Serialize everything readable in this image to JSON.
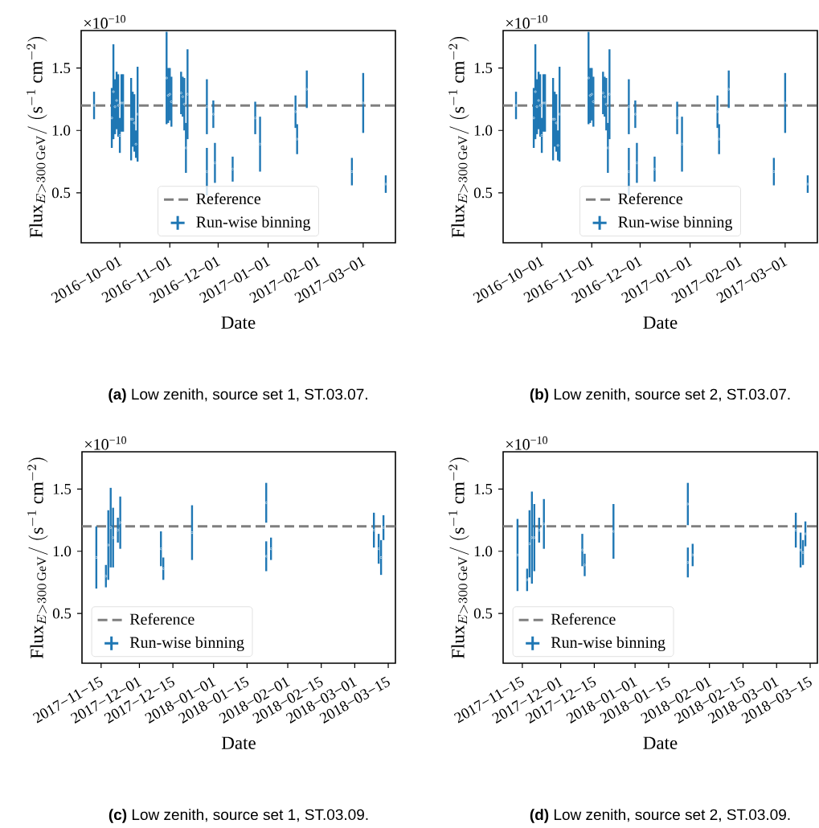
{
  "chart_data": [
    {
      "type": "scatter",
      "xlabel": "Date",
      "ylabel": "\\mathrm{Flux}_{E>300\\,\\mathrm{GeV}}/\\ (\\mathrm{s}^{-1}\\ \\mathrm{cm}^{-2})",
      "marker": "circle",
      "legend": "bottom",
      "grid": false,
      "x": [
        "2016-09-15",
        "2016-09-26",
        "2016-09-27",
        "2016-09-28",
        "2016-09-29",
        "2016-09-30",
        "2016-10-01",
        "2016-10-02",
        "2016-10-03",
        "2016-10-08",
        "2016-10-09",
        "2016-10-10",
        "2016-10-11",
        "2016-10-12",
        "2016-10-30",
        "2016-10-31",
        "2016-11-01",
        "2016-11-02",
        "2016-11-08",
        "2016-11-09",
        "2016-11-10",
        "2016-11-12",
        "2016-11-11",
        "2016-11-24",
        "2016-11-24",
        "2016-11-28",
        "2016-11-29",
        "2016-12-10",
        "2016-12-24",
        "2016-12-27",
        "2017-01-17",
        "2017-01-18",
        "2017-01-19",
        "2017-01-25",
        "2017-02-22",
        "2017-03-01",
        "2017-03-15"
      ],
      "series": [
        {
          "name": "Run-wise binning",
          "color": "#1f77b4",
          "values": [
            1.2,
            1.1,
            1.31,
            1.19,
            1.24,
            1.2,
            0.96,
            1.22,
            1.22,
            1.09,
            1.09,
            1.06,
            0.89,
            1.13,
            1.42,
            1.28,
            1.29,
            1.23,
            1.3,
            1.27,
            1.21,
            1.29,
            0.86,
            1.19,
            0.67,
            1.13,
            0.74,
            0.69,
            1.1,
            0.89,
            null,
            1.15,
            0.93,
            1.33,
            0.67,
            1.22,
            0.57
          ],
          "errors": [
            0.11,
            0.24,
            0.38,
            0.22,
            0.23,
            0.25,
            0.14,
            0.23,
            0.23,
            0.33,
            0.22,
            0.23,
            0.11,
            0.38,
            0.37,
            0.22,
            0.21,
            0.2,
            0.17,
            0.16,
            0.21,
            0.36,
            0.2,
            0.22,
            0.19,
            0.11,
            0.16,
            0.1,
            0.13,
            0.22,
            null,
            0.13,
            0.12,
            0.15,
            0.11,
            0.24,
            0.07
          ]
        }
      ],
      "xlim": [
        "2016-09-07",
        "2017-03-21"
      ],
      "ylim": [
        0.1,
        1.8
      ],
      "xticks": [
        {
          "value": "2016-10-01",
          "label": "2016−10−01"
        },
        {
          "value": "2016-11-01",
          "label": "2016−11−01"
        },
        {
          "value": "2016-12-01",
          "label": "2016−12−01"
        },
        {
          "value": "2017-01-01",
          "label": "2017−01−01"
        },
        {
          "value": "2017-02-01",
          "label": "2017−02−01"
        },
        {
          "value": "2017-03-01",
          "label": "2017−03−01"
        }
      ],
      "yticks": [
        {
          "value": 0.5,
          "label": "0.5"
        },
        {
          "value": 1.0,
          "label": "1.0"
        },
        {
          "value": 1.5,
          "label": "1.5"
        }
      ],
      "ref_lines": [
        {
          "axis": "y",
          "value": 1.2,
          "label": "Reference",
          "color": "#7f7f7f",
          "line_style": "dashed"
        }
      ],
      "annotations": [
        "×10$^{−10}$",
        "**(a)** Low zenith, source set 1, ST.03.07."
      ]
    },
    {
      "type": "scatter",
      "xlabel": "Date",
      "ylabel": "\\mathrm{Flux}_{E>300\\,\\mathrm{GeV}}/\\ (\\mathrm{s}^{-1}\\ \\mathrm{cm}^{-2})",
      "marker": "circle",
      "legend": "bottom",
      "grid": false,
      "x": [
        "2016-09-15",
        "2016-09-26",
        "2016-09-27",
        "2016-09-28",
        "2016-09-29",
        "2016-09-30",
        "2016-10-01",
        "2016-10-02",
        "2016-10-03",
        "2016-10-08",
        "2016-10-09",
        "2016-10-10",
        "2016-10-11",
        "2016-10-12",
        "2016-10-30",
        "2016-10-31",
        "2016-11-01",
        "2016-11-02",
        "2016-11-08",
        "2016-11-09",
        "2016-11-10",
        "2016-11-12",
        "2016-11-11",
        "2016-11-24",
        "2016-11-24",
        "2016-11-28",
        "2016-11-29",
        "2016-12-10",
        "2016-12-24",
        "2016-12-27",
        "2017-01-17",
        "2017-01-18",
        "2017-01-19",
        "2017-01-25",
        "2017-02-22",
        "2017-03-01",
        "2017-03-15"
      ],
      "series": [
        {
          "name": "Run-wise binning",
          "color": "#1f77b4",
          "values": [
            1.2,
            1.1,
            1.31,
            1.19,
            1.24,
            1.2,
            0.96,
            1.22,
            1.22,
            1.09,
            1.09,
            1.06,
            0.88,
            1.13,
            1.42,
            1.28,
            1.29,
            1.23,
            1.3,
            1.27,
            1.21,
            1.29,
            0.86,
            1.19,
            0.67,
            1.13,
            0.74,
            0.69,
            1.1,
            0.89,
            null,
            1.15,
            0.93,
            1.33,
            0.67,
            1.22,
            0.57
          ],
          "errors": [
            0.11,
            0.24,
            0.38,
            0.22,
            0.23,
            0.25,
            0.14,
            0.23,
            0.23,
            0.33,
            0.22,
            0.23,
            0.12,
            0.38,
            0.37,
            0.22,
            0.21,
            0.2,
            0.17,
            0.16,
            0.21,
            0.36,
            0.2,
            0.22,
            0.19,
            0.11,
            0.16,
            0.1,
            0.13,
            0.22,
            null,
            0.13,
            0.12,
            0.15,
            0.11,
            0.24,
            0.07
          ]
        }
      ],
      "xlim": [
        "2016-09-07",
        "2017-03-21"
      ],
      "ylim": [
        0.1,
        1.8
      ],
      "xticks": [
        {
          "value": "2016-10-01",
          "label": "2016−10−01"
        },
        {
          "value": "2016-11-01",
          "label": "2016−11−01"
        },
        {
          "value": "2016-12-01",
          "label": "2016−12−01"
        },
        {
          "value": "2017-01-01",
          "label": "2017−01−01"
        },
        {
          "value": "2017-02-01",
          "label": "2017−02−01"
        },
        {
          "value": "2017-03-01",
          "label": "2017−03−01"
        }
      ],
      "yticks": [
        {
          "value": 0.5,
          "label": "0.5"
        },
        {
          "value": 1.0,
          "label": "1.0"
        },
        {
          "value": 1.5,
          "label": "1.5"
        }
      ],
      "ref_lines": [
        {
          "axis": "y",
          "value": 1.2,
          "label": "Reference",
          "color": "#7f7f7f",
          "line_style": "dashed"
        }
      ],
      "annotations": [
        "×10$^{−10}$",
        "**(b)** Low zenith, source set 2, ST.03.07."
      ]
    },
    {
      "type": "scatter",
      "xlabel": "Date",
      "ylabel": "\\mathrm{Flux}_{E>300\\,\\mathrm{GeV}}/\\ (\\mathrm{s}^{-1}\\ \\mathrm{cm}^{-2})",
      "marker": "circle",
      "legend": "bottom left",
      "grid": false,
      "x": [
        "2017-11-13",
        "2017-11-17",
        "2017-11-18",
        "2017-11-19",
        "2017-11-20",
        "2017-11-22",
        "2017-11-23",
        "2017-12-10",
        "2017-12-11",
        "2017-12-23",
        "2018-01-23",
        "2018-01-23",
        "2018-01-25",
        "2018-03-09",
        "2018-03-11",
        "2018-03-12",
        "2018-03-13"
      ],
      "series": [
        {
          "name": "Run-wise binning",
          "color": "#1f77b4",
          "values": [
            0.95,
            0.8,
            1.05,
            1.19,
            1.11,
            1.17,
            1.23,
            1.02,
            0.86,
            1.15,
            1.39,
            0.96,
            1.02,
            1.17,
            1.02,
            0.95,
            1.19
          ],
          "errors": [
            0.25,
            0.09,
            0.28,
            0.32,
            0.24,
            0.1,
            0.21,
            0.14,
            0.09,
            0.22,
            0.16,
            0.12,
            0.09,
            0.14,
            0.12,
            0.14,
            0.1
          ]
        }
      ],
      "xlim": [
        "2017-11-07",
        "2018-03-18"
      ],
      "ylim": [
        0.1,
        1.8
      ],
      "xticks": [
        {
          "value": "2017-11-15",
          "label": "2017−11−15"
        },
        {
          "value": "2017-12-01",
          "label": "2017−12−01"
        },
        {
          "value": "2017-12-15",
          "label": "2017−12−15"
        },
        {
          "value": "2018-01-01",
          "label": "2018−01−01"
        },
        {
          "value": "2018-01-15",
          "label": "2018−01−15"
        },
        {
          "value": "2018-02-01",
          "label": "2018−02−01"
        },
        {
          "value": "2018-02-15",
          "label": "2018−02−15"
        },
        {
          "value": "2018-03-01",
          "label": "2018−03−01"
        },
        {
          "value": "2018-03-15",
          "label": "2018−03−15"
        }
      ],
      "yticks": [
        {
          "value": 0.5,
          "label": "0.5"
        },
        {
          "value": 1.0,
          "label": "1.0"
        },
        {
          "value": 1.5,
          "label": "1.5"
        }
      ],
      "ref_lines": [
        {
          "axis": "y",
          "value": 1.2,
          "label": "Reference",
          "color": "#7f7f7f",
          "line_style": "dashed"
        }
      ],
      "annotations": [
        "×10$^{−10}$",
        "**(c)** Low zenith, source set 1, ST.03.09."
      ]
    },
    {
      "type": "scatter",
      "xlabel": "Date",
      "ylabel": "\\mathrm{Flux}_{E>300\\,\\mathrm{GeV}}/\\ (\\mathrm{s}^{-1}\\ \\mathrm{cm}^{-2})",
      "marker": "circle",
      "legend": "bottom left",
      "grid": false,
      "x": [
        "2017-11-13",
        "2017-11-17",
        "2017-11-18",
        "2017-11-19",
        "2017-11-20",
        "2017-11-22",
        "2017-11-24",
        "2017-12-10",
        "2017-12-11",
        "2017-12-23",
        "2018-01-23",
        "2018-01-23",
        "2018-01-25",
        "2018-03-09",
        "2018-03-11",
        "2018-03-12",
        "2018-03-13"
      ],
      "series": [
        {
          "name": "Run-wise binning",
          "color": "#1f77b4",
          "values": [
            0.97,
            0.77,
            1.06,
            1.11,
            1.11,
            1.17,
            1.22,
            1.01,
            0.89,
            1.16,
            1.38,
            0.91,
            0.97,
            1.17,
            1.01,
            0.99,
            1.14
          ],
          "errors": [
            0.29,
            0.09,
            0.27,
            0.37,
            0.27,
            0.1,
            0.2,
            0.13,
            0.09,
            0.22,
            0.17,
            0.12,
            0.09,
            0.14,
            0.14,
            0.1,
            0.1
          ]
        }
      ],
      "xlim": [
        "2017-11-07",
        "2018-03-18"
      ],
      "ylim": [
        0.1,
        1.8
      ],
      "xticks": [
        {
          "value": "2017-11-15",
          "label": "2017−11−15"
        },
        {
          "value": "2017-12-01",
          "label": "2017−12−01"
        },
        {
          "value": "2017-12-15",
          "label": "2017−12−15"
        },
        {
          "value": "2018-01-01",
          "label": "2018−01−01"
        },
        {
          "value": "2018-01-15",
          "label": "2018−01−15"
        },
        {
          "value": "2018-02-01",
          "label": "2018−02−01"
        },
        {
          "value": "2018-02-15",
          "label": "2018−02−15"
        },
        {
          "value": "2018-03-01",
          "label": "2018−03−01"
        },
        {
          "value": "2018-03-15",
          "label": "2018−03−15"
        }
      ],
      "yticks": [
        {
          "value": 0.5,
          "label": "0.5"
        },
        {
          "value": 1.0,
          "label": "1.0"
        },
        {
          "value": 1.5,
          "label": "1.5"
        }
      ],
      "ref_lines": [
        {
          "axis": "y",
          "value": 1.2,
          "label": "Reference",
          "color": "#7f7f7f",
          "line_style": "dashed"
        }
      ],
      "annotations": [
        "×10$^{−10}$",
        "**(d)** Low zenith, source set 2, ST.03.09."
      ]
    }
  ]
}
